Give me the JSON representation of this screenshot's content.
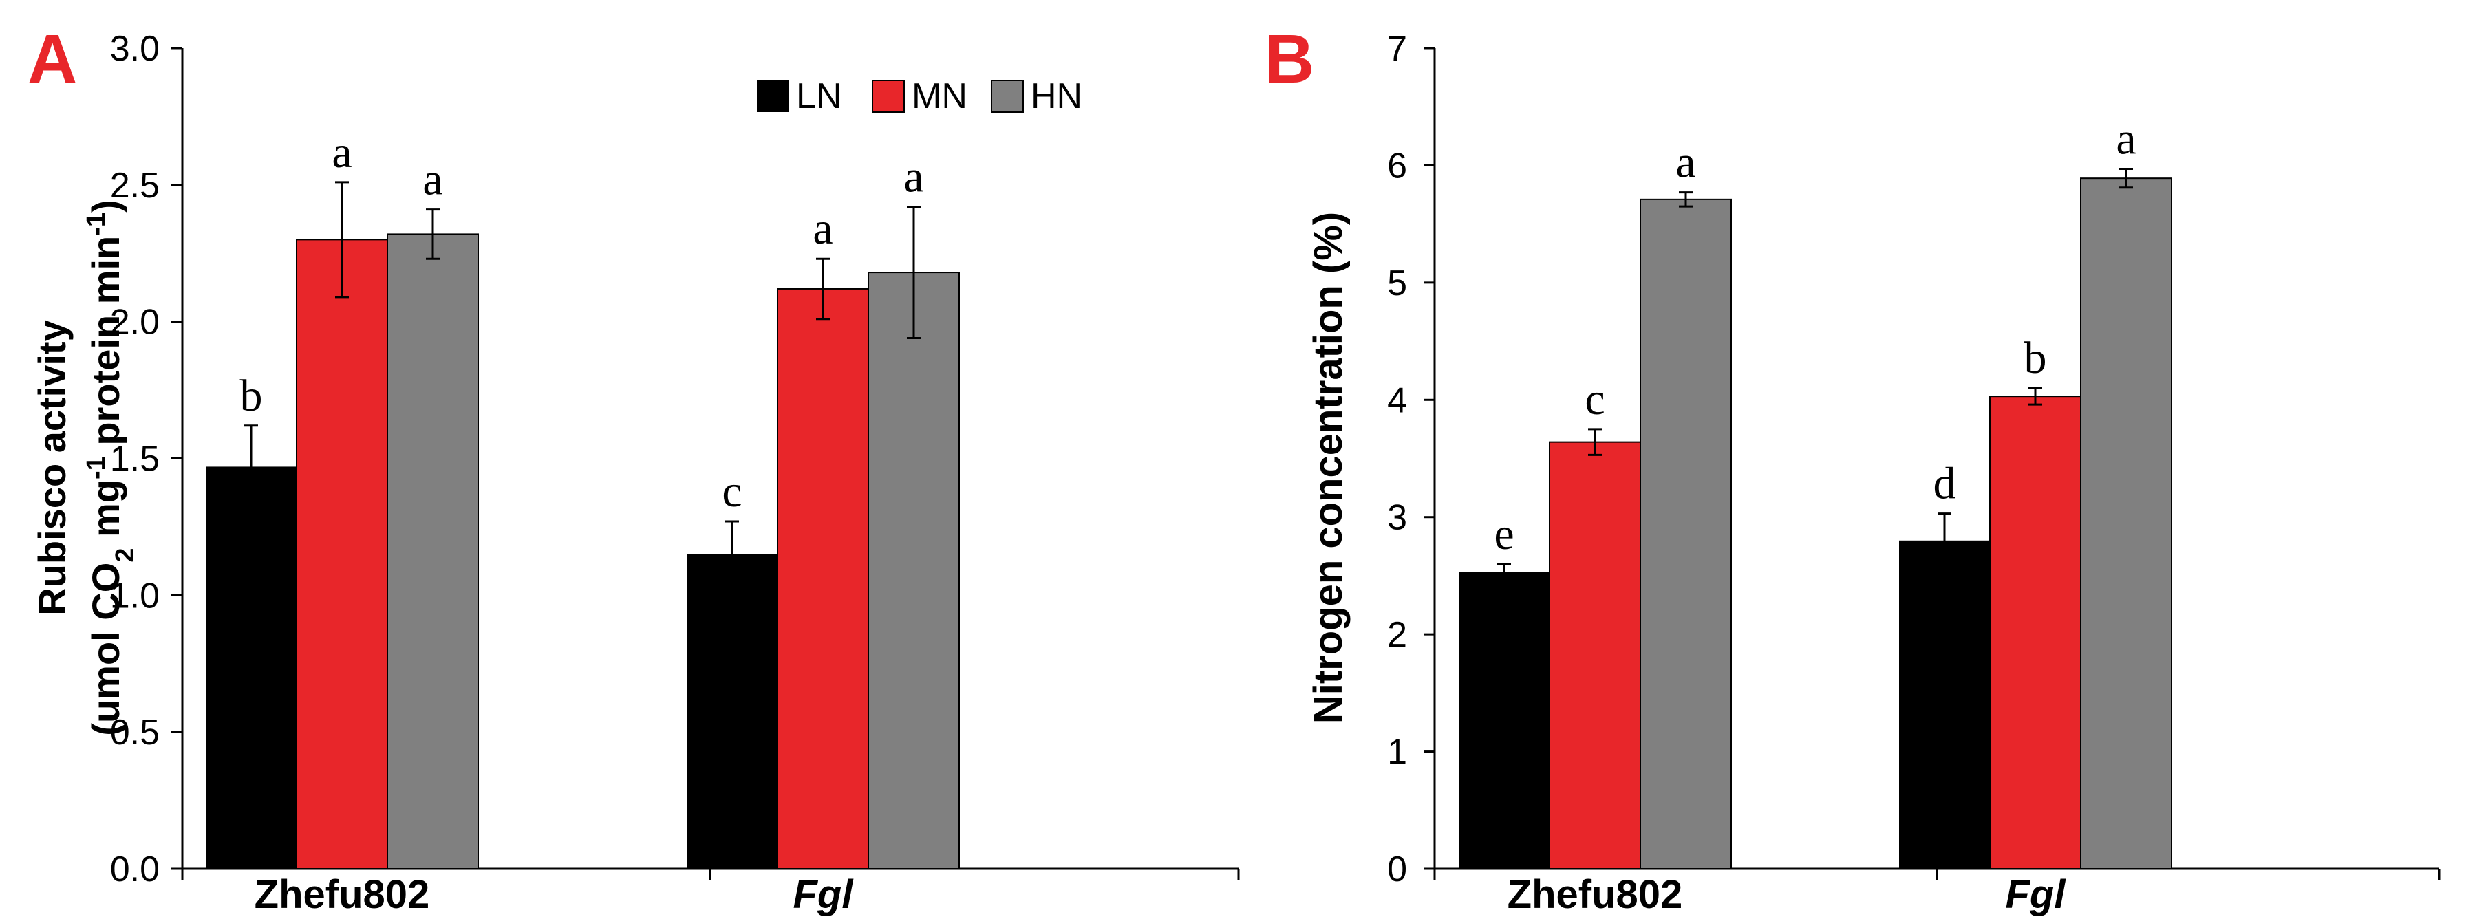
{
  "colors": {
    "LN": "#000000",
    "MN": "#e8262a",
    "HN": "#808080",
    "panel_label": "#e8262a",
    "axis": "#000000"
  },
  "chart_data": [
    {
      "type": "bar",
      "panel_label": "A",
      "categories": [
        "Zhefu802",
        "Fgl"
      ],
      "category_italic": [
        false,
        true
      ],
      "ylabel_line1": "Rubisco activity",
      "ylabel_line2": {
        "p1": "(umol CO",
        "sub": "2",
        "p2": " mg",
        "sup": "-1",
        "p3": " protein min",
        "sup2": "-1",
        "p4": ")"
      },
      "ylim": [
        0,
        3.0
      ],
      "yticks": [
        0,
        0.5,
        1.0,
        1.5,
        2.0,
        2.5,
        3.0
      ],
      "ytick_labels": [
        "0.0",
        "0.5",
        "1.0",
        "1.5",
        "2.0",
        "2.5",
        "3.0"
      ],
      "legend": {
        "position": "top-right",
        "entries": [
          "LN",
          "MN",
          "HN"
        ]
      },
      "series": [
        {
          "name": "LN",
          "values": [
            1.47,
            1.15
          ],
          "errors": [
            0.15,
            0.12
          ],
          "labels": [
            "b",
            "c"
          ]
        },
        {
          "name": "MN",
          "values": [
            2.3,
            2.12
          ],
          "errors": [
            0.21,
            0.11
          ],
          "labels": [
            "a",
            "a"
          ]
        },
        {
          "name": "HN",
          "values": [
            2.32,
            2.18
          ],
          "errors": [
            0.09,
            0.24
          ],
          "labels": [
            "a",
            "a"
          ]
        }
      ]
    },
    {
      "type": "bar",
      "panel_label": "B",
      "categories": [
        "Zhefu802",
        "Fgl"
      ],
      "category_italic": [
        false,
        true
      ],
      "ylabel": "Nitrogen concentration (%)",
      "ylim": [
        0,
        7
      ],
      "yticks": [
        0,
        1,
        2,
        3,
        4,
        5,
        6,
        7
      ],
      "ytick_labels": [
        "0",
        "1",
        "2",
        "3",
        "4",
        "5",
        "6",
        "7"
      ],
      "series": [
        {
          "name": "LN",
          "values": [
            2.53,
            2.8
          ],
          "errors": [
            0.07,
            0.23
          ],
          "labels": [
            "e",
            "d"
          ]
        },
        {
          "name": "MN",
          "values": [
            3.64,
            4.03
          ],
          "errors": [
            0.11,
            0.07
          ],
          "labels": [
            "c",
            "b"
          ]
        },
        {
          "name": "HN",
          "values": [
            5.71,
            5.89
          ],
          "errors": [
            0.06,
            0.08
          ],
          "labels": [
            "a",
            "a"
          ]
        }
      ]
    }
  ]
}
